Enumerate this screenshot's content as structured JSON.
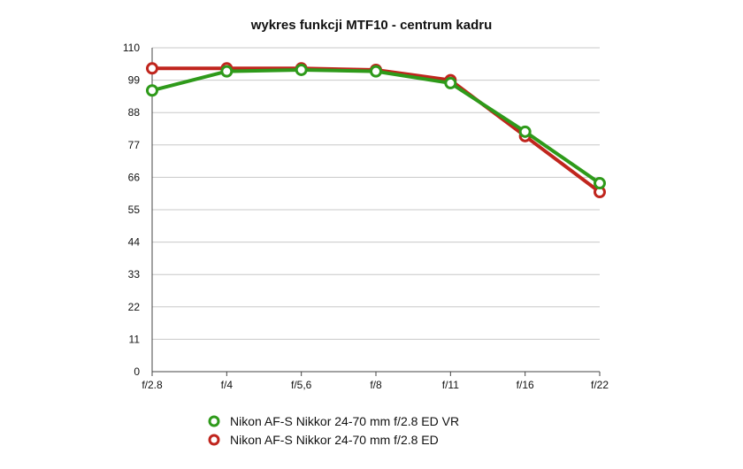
{
  "chart_data": {
    "type": "line",
    "title": "wykres funkcji MTF10 - centrum kadru",
    "xlabel": "",
    "ylabel": "",
    "categories": [
      "f/2.8",
      "f/4",
      "f/5,6",
      "f/8",
      "f/11",
      "f/16",
      "f/22"
    ],
    "yticks": [
      "0",
      "11",
      "22",
      "33",
      "44",
      "55",
      "66",
      "77",
      "88",
      "99",
      "110"
    ],
    "ylim": [
      0,
      110
    ],
    "grid": true,
    "legend_position": "bottom",
    "series": [
      {
        "name": "Nikon AF-S Nikkor 24-70 mm f/2.8 ED",
        "color": "#c0251d",
        "values": [
          103,
          103,
          103,
          102.5,
          99,
          80,
          61
        ]
      },
      {
        "name": "Nikon AF-S Nikkor 24-70 mm f/2.8 ED VR",
        "color": "#2e9a1a",
        "values": [
          95.5,
          102,
          102.5,
          102,
          98,
          81.5,
          64
        ]
      }
    ],
    "legend_order": [
      1,
      0
    ]
  }
}
